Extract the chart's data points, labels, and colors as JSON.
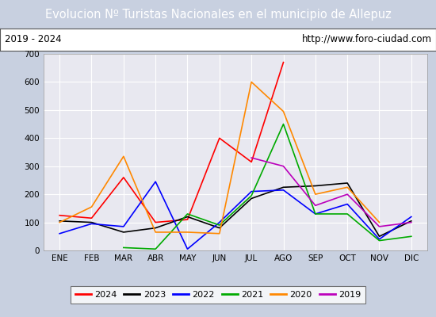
{
  "title": "Evolucion Nº Turistas Nacionales en el municipio de Allepuz",
  "subtitle_left": "2019 - 2024",
  "subtitle_right": "http://www.foro-ciudad.com",
  "months": [
    "ENE",
    "FEB",
    "MAR",
    "ABR",
    "MAY",
    "JUN",
    "JUL",
    "AGO",
    "SEP",
    "OCT",
    "NOV",
    "DIC"
  ],
  "title_bg": "#4d79c7",
  "title_color": "white",
  "plot_bg": "#e8e8f0",
  "outer_bg": "#c8d0e0",
  "grid_color": "white",
  "series": [
    {
      "label": "2024",
      "color": "#ff0000",
      "data": [
        125,
        115,
        260,
        100,
        110,
        400,
        315,
        670,
        null,
        null,
        null,
        null
      ]
    },
    {
      "label": "2023",
      "color": "#000000",
      "data": [
        105,
        100,
        65,
        80,
        120,
        80,
        185,
        225,
        230,
        240,
        50,
        105
      ]
    },
    {
      "label": "2022",
      "color": "#0000ff",
      "data": [
        60,
        95,
        85,
        245,
        5,
        100,
        210,
        215,
        130,
        165,
        40,
        120
      ]
    },
    {
      "label": "2021",
      "color": "#00aa00",
      "data": [
        null,
        null,
        10,
        5,
        130,
        90,
        195,
        450,
        130,
        130,
        35,
        50
      ]
    },
    {
      "label": "2020",
      "color": "#ff8800",
      "data": [
        100,
        155,
        335,
        65,
        65,
        60,
        600,
        495,
        200,
        225,
        100,
        null
      ]
    },
    {
      "label": "2019",
      "color": "#bb00bb",
      "data": [
        null,
        null,
        null,
        null,
        null,
        null,
        330,
        300,
        160,
        200,
        85,
        100
      ]
    }
  ],
  "ylim": [
    0,
    700
  ],
  "yticks": [
    0,
    100,
    200,
    300,
    400,
    500,
    600,
    700
  ],
  "title_fontsize": 10.5,
  "subtitle_fontsize": 8.5,
  "tick_fontsize": 7.5,
  "legend_fontsize": 8
}
